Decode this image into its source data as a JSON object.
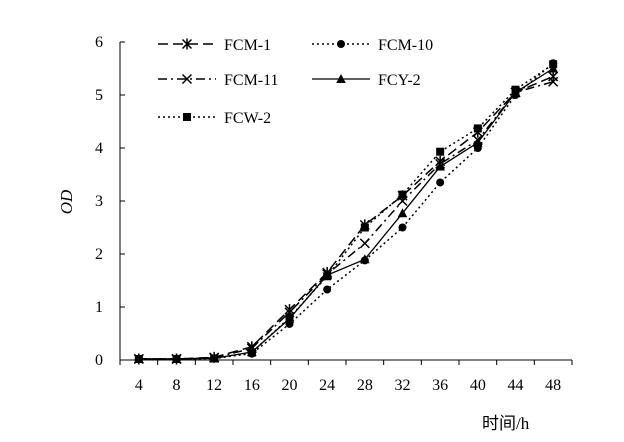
{
  "chart_data": {
    "type": "line",
    "title": "",
    "xlabel": "时间/h",
    "ylabel": "OD",
    "x": [
      4,
      8,
      12,
      16,
      20,
      24,
      28,
      32,
      36,
      40,
      44,
      48
    ],
    "xticks": [
      "4",
      "8",
      "12",
      "16",
      "20",
      "24",
      "28",
      "32",
      "36",
      "40",
      "44",
      "48"
    ],
    "yticks": [
      "0",
      "1",
      "2",
      "3",
      "4",
      "5",
      "6"
    ],
    "ylim": [
      0,
      6
    ],
    "grid": false,
    "legend_position": "top-left",
    "series": [
      {
        "name": "FCM-1",
        "line": "dashed",
        "marker": "asterisk",
        "values": [
          0.02,
          0.02,
          0.05,
          0.25,
          0.95,
          1.65,
          2.55,
          3.1,
          3.75,
          4.3,
          5.05,
          5.35
        ]
      },
      {
        "name": "FCM-10",
        "line": "dotted",
        "marker": "circle",
        "values": [
          0.02,
          0.02,
          0.03,
          0.12,
          0.68,
          1.33,
          1.88,
          2.5,
          3.35,
          4.0,
          5.0,
          5.6
        ]
      },
      {
        "name": "FCM-11",
        "line": "dashdot",
        "marker": "x",
        "values": [
          0.02,
          0.02,
          0.04,
          0.22,
          0.9,
          1.62,
          2.2,
          3.0,
          3.7,
          4.15,
          5.05,
          5.25
        ]
      },
      {
        "name": "FCY-2",
        "line": "solid",
        "marker": "triangle",
        "values": [
          0.02,
          0.02,
          0.03,
          0.15,
          0.78,
          1.6,
          1.9,
          2.77,
          3.65,
          4.1,
          5.05,
          5.5
        ]
      },
      {
        "name": "FCW-2",
        "line": "dotted",
        "marker": "square",
        "values": [
          0.02,
          0.02,
          0.03,
          0.14,
          0.8,
          1.58,
          2.5,
          3.12,
          3.93,
          4.37,
          5.1,
          5.58
        ]
      }
    ]
  }
}
